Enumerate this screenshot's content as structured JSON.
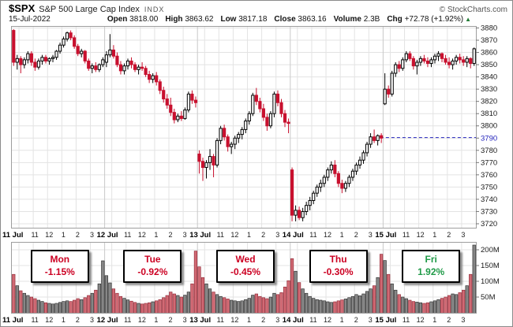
{
  "header": {
    "ticker": "$SPX",
    "title": "S&P 500 Large Cap Index",
    "exchange": "INDX",
    "copyright": "© StockCharts.com",
    "date": "15-Jul-2022",
    "fields": [
      {
        "label": "Open",
        "value": "3818.00"
      },
      {
        "label": "High",
        "value": "3863.62"
      },
      {
        "label": "Low",
        "value": "3817.18"
      },
      {
        "label": "Close",
        "value": "3863.16"
      },
      {
        "label": "Volume",
        "value": "2.3B"
      },
      {
        "label": "Chg",
        "value": "+72.78 (+1.92%)"
      }
    ],
    "direction_icon": "up-triangle"
  },
  "colors": {
    "candle_down": "#c8102e",
    "candle_up_fill": "#ffffff",
    "candle_up_stroke": "#000000",
    "vol_up_fill": "#868686",
    "vol_up_stroke": "#1f1f1f",
    "vol_down_fill": "#d06a74",
    "vol_down_stroke": "#8c1f2d",
    "grid": "#e3e3e3",
    "day_grid": "#c9c9c9",
    "frame": "#9e9e9e",
    "axis_text": "#1a1a1a",
    "dashed_blue": "#2222bb",
    "neg_text": "#cc0022",
    "pos_text": "#1f9a47"
  },
  "chart_data": {
    "type": "candlestick",
    "timeframe": "15-minute bars, 5 days",
    "title": "$SPX intraday with volume",
    "price_axis": {
      "min": 3720,
      "max": 3880,
      "step": 10,
      "highlight_label": 3790
    },
    "volume_axis": {
      "labels": [
        "200M",
        "150M",
        "100M",
        "50M"
      ],
      "step_millions": 50
    },
    "hour_labels": [
      "11",
      "12",
      "1",
      "2",
      "3"
    ],
    "dashed_line_level": 3790.4,
    "legend_position": "boxes above volume panel, one per day",
    "days": [
      {
        "date_label": "11 Jul",
        "weekday": "Mon",
        "change_pct": "-1.15%",
        "direction": "down",
        "candles": [
          [
            3878,
            3879,
            3849,
            3852
          ],
          [
            3852,
            3858,
            3846,
            3855
          ],
          [
            3855,
            3857,
            3843,
            3850
          ],
          [
            3850,
            3856,
            3847,
            3854
          ],
          [
            3854,
            3861,
            3851,
            3859
          ],
          [
            3859,
            3861,
            3849,
            3852
          ],
          [
            3852,
            3855,
            3845,
            3848
          ],
          [
            3848,
            3855,
            3846,
            3853
          ],
          [
            3853,
            3858,
            3850,
            3856
          ],
          [
            3856,
            3858,
            3851,
            3853
          ],
          [
            3853,
            3856,
            3850,
            3855
          ],
          [
            3855,
            3858,
            3852,
            3856
          ],
          [
            3856,
            3862,
            3854,
            3861
          ],
          [
            3861,
            3868,
            3859,
            3866
          ],
          [
            3866,
            3873,
            3864,
            3871
          ],
          [
            3871,
            3877,
            3869,
            3876
          ],
          [
            3876,
            3878,
            3870,
            3872
          ],
          [
            3872,
            3874,
            3863,
            3865
          ],
          [
            3865,
            3867,
            3857,
            3859
          ],
          [
            3859,
            3863,
            3856,
            3861
          ],
          [
            3861,
            3862,
            3851,
            3853
          ],
          [
            3853,
            3855,
            3845,
            3847
          ],
          [
            3847,
            3851,
            3843,
            3849
          ],
          [
            3849,
            3852,
            3844,
            3846
          ],
          [
            3846,
            3851,
            3844,
            3850
          ],
          [
            3850,
            3856,
            3848,
            3854
          ]
        ],
        "volumes": [
          122,
          86,
          70,
          62,
          55,
          50,
          45,
          40,
          36,
          32,
          30,
          28,
          30,
          33,
          36,
          38,
          36,
          40,
          45,
          42,
          48,
          55,
          62,
          72,
          92,
          165
        ]
      },
      {
        "date_label": "12 Jul",
        "weekday": "Tue",
        "change_pct": "-0.92%",
        "direction": "down",
        "candles": [
          [
            3852,
            3861,
            3848,
            3858
          ],
          [
            3858,
            3875,
            3856,
            3862
          ],
          [
            3862,
            3866,
            3855,
            3857
          ],
          [
            3857,
            3860,
            3848,
            3850
          ],
          [
            3850,
            3853,
            3842,
            3845
          ],
          [
            3845,
            3851,
            3842,
            3849
          ],
          [
            3849,
            3855,
            3846,
            3853
          ],
          [
            3853,
            3856,
            3847,
            3850
          ],
          [
            3850,
            3852,
            3844,
            3846
          ],
          [
            3846,
            3850,
            3842,
            3848
          ],
          [
            3848,
            3852,
            3845,
            3847
          ],
          [
            3847,
            3849,
            3840,
            3842
          ],
          [
            3842,
            3845,
            3835,
            3838
          ],
          [
            3838,
            3843,
            3835,
            3841
          ],
          [
            3841,
            3844,
            3833,
            3836
          ],
          [
            3836,
            3838,
            3826,
            3829
          ],
          [
            3829,
            3832,
            3819,
            3822
          ],
          [
            3822,
            3826,
            3814,
            3817
          ],
          [
            3817,
            3823,
            3808,
            3811
          ],
          [
            3811,
            3814,
            3802,
            3805
          ],
          [
            3805,
            3810,
            3803,
            3808
          ],
          [
            3808,
            3812,
            3804,
            3806
          ],
          [
            3806,
            3815,
            3805,
            3813
          ],
          [
            3813,
            3828,
            3811,
            3826
          ],
          [
            3826,
            3829,
            3818,
            3821
          ],
          [
            3821,
            3824,
            3815,
            3819
          ]
        ],
        "volumes": [
          118,
          95,
          76,
          62,
          52,
          46,
          41,
          37,
          33,
          30,
          28,
          30,
          32,
          35,
          38,
          42,
          48,
          55,
          66,
          60,
          55,
          50,
          56,
          66,
          92,
          196
        ]
      },
      {
        "date_label": "13 Jul",
        "weekday": "Wed",
        "change_pct": "-0.45%",
        "direction": "down",
        "candles": [
          [
            3777,
            3780,
            3761,
            3771
          ],
          [
            3771,
            3774,
            3755,
            3766
          ],
          [
            3766,
            3772,
            3757,
            3770
          ],
          [
            3770,
            3781,
            3764,
            3775
          ],
          [
            3775,
            3777,
            3758,
            3768
          ],
          [
            3768,
            3790,
            3766,
            3788
          ],
          [
            3788,
            3800,
            3785,
            3798
          ],
          [
            3798,
            3801,
            3788,
            3791
          ],
          [
            3791,
            3793,
            3779,
            3783
          ],
          [
            3783,
            3787,
            3777,
            3785
          ],
          [
            3785,
            3792,
            3781,
            3790
          ],
          [
            3790,
            3795,
            3786,
            3793
          ],
          [
            3793,
            3799,
            3789,
            3797
          ],
          [
            3797,
            3806,
            3794,
            3804
          ],
          [
            3804,
            3812,
            3801,
            3810
          ],
          [
            3810,
            3827,
            3808,
            3825
          ],
          [
            3825,
            3831,
            3817,
            3820
          ],
          [
            3820,
            3823,
            3811,
            3814
          ],
          [
            3814,
            3818,
            3804,
            3807
          ],
          [
            3807,
            3810,
            3796,
            3800
          ],
          [
            3800,
            3812,
            3798,
            3810
          ],
          [
            3810,
            3828,
            3807,
            3826
          ],
          [
            3826,
            3829,
            3816,
            3819
          ],
          [
            3819,
            3822,
            3807,
            3810
          ],
          [
            3810,
            3813,
            3799,
            3803
          ],
          [
            3803,
            3806,
            3794,
            3802
          ]
        ],
        "volumes": [
          146,
          112,
          92,
          76,
          66,
          58,
          52,
          48,
          44,
          40,
          38,
          36,
          38,
          42,
          46,
          56,
          60,
          52,
          48,
          45,
          50,
          62,
          58,
          64,
          82,
          102
        ]
      },
      {
        "date_label": "14 Jul",
        "weekday": "Thu",
        "change_pct": "-0.30%",
        "direction": "down",
        "candles": [
          [
            3764,
            3766,
            3722,
            3727
          ],
          [
            3727,
            3735,
            3722,
            3731
          ],
          [
            3731,
            3734,
            3723,
            3725
          ],
          [
            3725,
            3733,
            3722,
            3730
          ],
          [
            3730,
            3738,
            3727,
            3735
          ],
          [
            3735,
            3742,
            3731,
            3739
          ],
          [
            3739,
            3747,
            3736,
            3745
          ],
          [
            3745,
            3752,
            3742,
            3750
          ],
          [
            3750,
            3756,
            3746,
            3753
          ],
          [
            3753,
            3760,
            3750,
            3758
          ],
          [
            3758,
            3766,
            3755,
            3764
          ],
          [
            3764,
            3771,
            3761,
            3768
          ],
          [
            3768,
            3772,
            3758,
            3761
          ],
          [
            3761,
            3763,
            3750,
            3753
          ],
          [
            3753,
            3756,
            3745,
            3749
          ],
          [
            3749,
            3755,
            3746,
            3753
          ],
          [
            3753,
            3760,
            3750,
            3758
          ],
          [
            3758,
            3765,
            3755,
            3763
          ],
          [
            3763,
            3770,
            3760,
            3768
          ],
          [
            3768,
            3775,
            3765,
            3772
          ],
          [
            3772,
            3780,
            3769,
            3778
          ],
          [
            3778,
            3787,
            3775,
            3785
          ],
          [
            3785,
            3794,
            3782,
            3791
          ],
          [
            3791,
            3797,
            3786,
            3788
          ],
          [
            3788,
            3793,
            3784,
            3792
          ],
          [
            3792,
            3794,
            3786,
            3790
          ]
        ],
        "volumes": [
          172,
          132,
          96,
          76,
          62,
          52,
          46,
          42,
          40,
          38,
          35,
          33,
          35,
          38,
          41,
          44,
          48,
          52,
          58,
          54,
          60,
          68,
          76,
          86,
          112,
          186
        ]
      },
      {
        "date_label": "15 Jul",
        "weekday": "Fri",
        "change_pct": "1.92%",
        "direction": "up",
        "candles": [
          [
            3818,
            3843,
            3817,
            3830
          ],
          [
            3830,
            3833,
            3823,
            3826
          ],
          [
            3826,
            3845,
            3824,
            3843
          ],
          [
            3843,
            3852,
            3840,
            3850
          ],
          [
            3850,
            3853,
            3844,
            3847
          ],
          [
            3847,
            3856,
            3845,
            3854
          ],
          [
            3854,
            3861,
            3852,
            3859
          ],
          [
            3859,
            3861,
            3853,
            3855
          ],
          [
            3855,
            3857,
            3846,
            3849
          ],
          [
            3849,
            3854,
            3842,
            3852
          ],
          [
            3852,
            3857,
            3849,
            3855
          ],
          [
            3855,
            3858,
            3851,
            3853
          ],
          [
            3853,
            3856,
            3848,
            3851
          ],
          [
            3851,
            3856,
            3848,
            3854
          ],
          [
            3854,
            3859,
            3851,
            3857
          ],
          [
            3857,
            3861,
            3853,
            3859
          ],
          [
            3859,
            3860,
            3852,
            3855
          ],
          [
            3855,
            3858,
            3850,
            3852
          ],
          [
            3852,
            3856,
            3847,
            3850
          ],
          [
            3850,
            3855,
            3846,
            3853
          ],
          [
            3853,
            3858,
            3850,
            3856
          ],
          [
            3856,
            3859,
            3851,
            3854
          ],
          [
            3854,
            3857,
            3849,
            3852
          ],
          [
            3852,
            3857,
            3848,
            3855
          ],
          [
            3855,
            3856,
            3847,
            3851
          ],
          [
            3851,
            3864,
            3849,
            3863
          ]
        ],
        "volumes": [
          166,
          122,
          92,
          72,
          58,
          50,
          45,
          40,
          36,
          34,
          32,
          30,
          32,
          35,
          38,
          42,
          46,
          50,
          55,
          60,
          58,
          64,
          72,
          86,
          122,
          215
        ]
      }
    ]
  }
}
